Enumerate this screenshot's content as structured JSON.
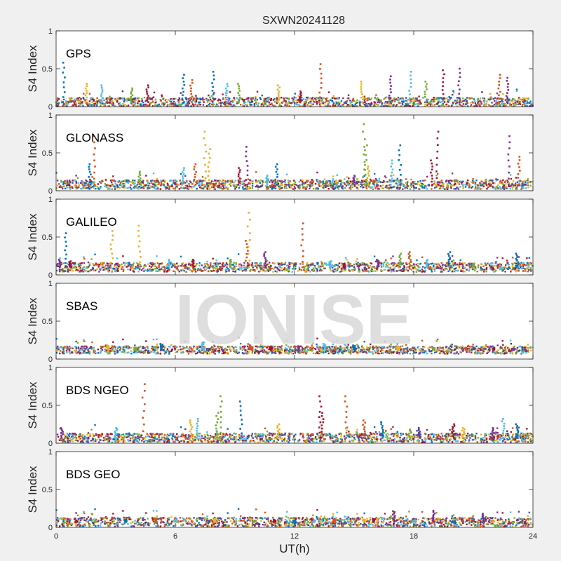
{
  "figure_title": "SXWN20241128",
  "watermark": "IONISE",
  "colors": [
    "#0072BD",
    "#D95319",
    "#EDB120",
    "#7E2F8E",
    "#77AC30",
    "#4DBEEE",
    "#A2142F"
  ],
  "chart_data": [
    {
      "type": "scatter",
      "label": "GPS",
      "ylabel": "S4 Index",
      "xlim": [
        0,
        24
      ],
      "ylim": [
        0,
        1
      ],
      "yticks": [
        0,
        0.5,
        1
      ],
      "ytick_labels": [
        "0",
        "0.5",
        "1"
      ],
      "xticks": [
        0,
        6,
        12,
        18,
        24
      ],
      "xtick_labels": [],
      "grid": false,
      "baseline_level": 0.06,
      "series": [
        {
          "values": [
            [
              0.4,
              0.58
            ],
            [
              6.4,
              0.42
            ],
            [
              7.9,
              0.46
            ]
          ]
        },
        {
          "values": [
            [
              6.8,
              0.35
            ],
            [
              13.3,
              0.56
            ],
            [
              22.3,
              0.42
            ]
          ]
        },
        {
          "values": [
            [
              1.5,
              0.3
            ],
            [
              11.2,
              0.28
            ],
            [
              15.4,
              0.33
            ]
          ]
        },
        {
          "values": [
            [
              16.8,
              0.4
            ],
            [
              20.3,
              0.5
            ],
            [
              22.7,
              0.38
            ]
          ]
        },
        {
          "values": [
            [
              3.8,
              0.24
            ],
            [
              9.2,
              0.3
            ],
            [
              18.6,
              0.33
            ]
          ]
        },
        {
          "values": [
            [
              2.3,
              0.28
            ],
            [
              8.6,
              0.3
            ],
            [
              17.8,
              0.46
            ]
          ]
        },
        {
          "values": [
            [
              4.6,
              0.28
            ],
            [
              12.3,
              0.2
            ],
            [
              19.5,
              0.48
            ]
          ]
        }
      ]
    },
    {
      "type": "scatter",
      "label": "GLONASS",
      "ylabel": "S4 Index",
      "xlim": [
        0,
        24
      ],
      "ylim": [
        0,
        1
      ],
      "yticks": [
        0,
        0.5,
        1
      ],
      "ytick_labels": [
        "0",
        "0.5",
        "1"
      ],
      "xticks": [
        0,
        6,
        12,
        18,
        24
      ],
      "xtick_labels": [],
      "grid": false,
      "baseline_level": 0.08,
      "series": [
        {
          "values": [
            [
              1.7,
              0.35
            ],
            [
              11.1,
              0.35
            ],
            [
              17.3,
              0.6
            ]
          ]
        },
        {
          "values": [
            [
              1.9,
              0.72
            ],
            [
              7.0,
              0.35
            ],
            [
              23.3,
              0.45
            ]
          ]
        },
        {
          "values": [
            [
              7.5,
              0.78
            ],
            [
              7.7,
              0.55
            ],
            [
              15.7,
              0.32
            ]
          ]
        },
        {
          "values": [
            [
              9.6,
              0.58
            ],
            [
              15.0,
              0.2
            ],
            [
              22.8,
              0.72
            ]
          ]
        },
        {
          "values": [
            [
              15.5,
              0.88
            ],
            [
              15.6,
              0.6
            ],
            [
              4.2,
              0.25
            ]
          ]
        },
        {
          "values": [
            [
              6.4,
              0.3
            ],
            [
              10.6,
              0.2
            ],
            [
              16.9,
              0.4
            ]
          ]
        },
        {
          "values": [
            [
              19.2,
              0.78
            ],
            [
              18.9,
              0.4
            ],
            [
              9.2,
              0.3
            ]
          ]
        }
      ]
    },
    {
      "type": "scatter",
      "label": "GALILEO",
      "ylabel": "S4 Index",
      "xlim": [
        0,
        24
      ],
      "ylim": [
        0,
        1
      ],
      "yticks": [
        0,
        0.5,
        1
      ],
      "ytick_labels": [
        "0",
        "0.5",
        "1"
      ],
      "xticks": [
        0,
        6,
        12,
        18,
        24
      ],
      "xtick_labels": [],
      "grid": false,
      "baseline_level": 0.1,
      "series": [
        {
          "values": [
            [
              0.5,
              0.55
            ],
            [
              19.8,
              0.3
            ],
            [
              23.2,
              0.28
            ]
          ]
        },
        {
          "values": [
            [
              9.6,
              0.45
            ],
            [
              12.4,
              0.68
            ],
            [
              17.8,
              0.3
            ]
          ]
        },
        {
          "values": [
            [
              4.2,
              0.65
            ],
            [
              9.7,
              0.82
            ],
            [
              2.8,
              0.58
            ]
          ]
        },
        {
          "values": [
            [
              0.2,
              0.2
            ],
            [
              10.5,
              0.3
            ],
            [
              16.2,
              0.2
            ]
          ]
        },
        {
          "values": [
            [
              17.3,
              0.28
            ],
            [
              8.8,
              0.2
            ],
            [
              21.0,
              0.15
            ]
          ]
        },
        {
          "values": [
            [
              5.7,
              0.2
            ],
            [
              13.8,
              0.18
            ],
            [
              18.7,
              0.2
            ]
          ]
        },
        {
          "values": [
            [
              0.7,
              0.18
            ],
            [
              6.9,
              0.2
            ],
            [
              14.5,
              0.15
            ]
          ]
        }
      ]
    },
    {
      "type": "scatter",
      "label": "SBAS",
      "ylabel": "S4 Index",
      "xlim": [
        0,
        24
      ],
      "ylim": [
        0,
        1
      ],
      "yticks": [
        0,
        0.5,
        1
      ],
      "ytick_labels": [
        "0",
        "0.5",
        "1"
      ],
      "xticks": [
        0,
        6,
        12,
        18,
        24
      ],
      "xtick_labels": [],
      "grid": false,
      "baseline_level": 0.12,
      "series": [
        {
          "values": [
            [
              5.3,
              0.2
            ],
            [
              15.0,
              0.18
            ]
          ]
        },
        {
          "values": [
            [
              9.8,
              0.16
            ],
            [
              20.6,
              0.15
            ]
          ]
        },
        {
          "values": [
            [
              2.6,
              0.18
            ],
            [
              17.2,
              0.16
            ]
          ]
        },
        {
          "values": [
            [
              12.2,
              0.17
            ],
            [
              23.0,
              0.14
            ]
          ]
        },
        {
          "values": [
            [
              4.0,
              0.15
            ],
            [
              19.0,
              0.15
            ]
          ]
        },
        {
          "values": [
            [
              7.4,
              0.22
            ],
            [
              13.5,
              0.2
            ]
          ]
        },
        {
          "values": [
            [
              10.8,
              0.16
            ],
            [
              22.0,
              0.15
            ]
          ]
        }
      ]
    },
    {
      "type": "scatter",
      "label": "BDS NGEO",
      "ylabel": "S4 Index",
      "xlim": [
        0,
        24
      ],
      "ylim": [
        0,
        1
      ],
      "yticks": [
        0,
        0.5,
        1
      ],
      "ytick_labels": [
        "0",
        "0.5",
        "1"
      ],
      "xticks": [
        0,
        6,
        12,
        18,
        24
      ],
      "xtick_labels": [],
      "grid": false,
      "baseline_level": 0.07,
      "series": [
        {
          "values": [
            [
              9.3,
              0.55
            ],
            [
              16.4,
              0.28
            ],
            [
              23.2,
              0.25
            ]
          ]
        },
        {
          "values": [
            [
              4.4,
              0.78
            ],
            [
              14.6,
              0.62
            ],
            [
              15.5,
              0.3
            ]
          ]
        },
        {
          "values": [
            [
              6.8,
              0.3
            ],
            [
              11.2,
              0.25
            ],
            [
              20.5,
              0.2
            ]
          ]
        },
        {
          "values": [
            [
              0.3,
              0.2
            ],
            [
              18.3,
              0.2
            ],
            [
              22.0,
              0.2
            ]
          ]
        },
        {
          "values": [
            [
              8.3,
              0.62
            ],
            [
              8.1,
              0.4
            ],
            [
              17.8,
              0.18
            ]
          ]
        },
        {
          "values": [
            [
              7.1,
              0.32
            ],
            [
              22.5,
              0.32
            ],
            [
              3.0,
              0.2
            ]
          ]
        },
        {
          "values": [
            [
              13.3,
              0.62
            ],
            [
              13.4,
              0.4
            ],
            [
              20.0,
              0.25
            ]
          ]
        }
      ]
    },
    {
      "type": "scatter",
      "label": "BDS GEO",
      "ylabel": "S4 Index",
      "xlim": [
        0,
        24
      ],
      "ylim": [
        0,
        1
      ],
      "yticks": [
        0,
        0.5,
        1
      ],
      "ytick_labels": [
        "0",
        "0.5",
        "1"
      ],
      "xticks": [
        0,
        6,
        12,
        18,
        24
      ],
      "xtick_labels": [
        "0",
        "6",
        "12",
        "18",
        "24"
      ],
      "xlabel": "UT(h)",
      "grid": false,
      "baseline_level": 0.07,
      "series": [
        {
          "values": [
            [
              3.5,
              0.1
            ],
            [
              12.0,
              0.09
            ],
            [
              20.0,
              0.08
            ]
          ]
        },
        {
          "values": [
            [
              5.0,
              0.12
            ],
            [
              14.0,
              0.1
            ],
            [
              19.0,
              0.09
            ]
          ]
        },
        {
          "values": [
            [
              8.0,
              0.11
            ],
            [
              15.5,
              0.1
            ],
            [
              22.0,
              0.08
            ]
          ]
        },
        {
          "values": [
            [
              17.0,
              0.2
            ],
            [
              19.0,
              0.22
            ],
            [
              21.5,
              0.18
            ]
          ]
        },
        {
          "values": [
            [
              2.0,
              0.08
            ],
            [
              10.0,
              0.09
            ],
            [
              23.0,
              0.07
            ]
          ]
        },
        {
          "values": [
            [
              6.0,
              0.09
            ],
            [
              13.0,
              0.08
            ],
            [
              18.0,
              0.08
            ]
          ]
        },
        {
          "values": [
            [
              1.0,
              0.08
            ],
            [
              11.0,
              0.1
            ],
            [
              16.0,
              0.11
            ]
          ]
        }
      ]
    }
  ]
}
